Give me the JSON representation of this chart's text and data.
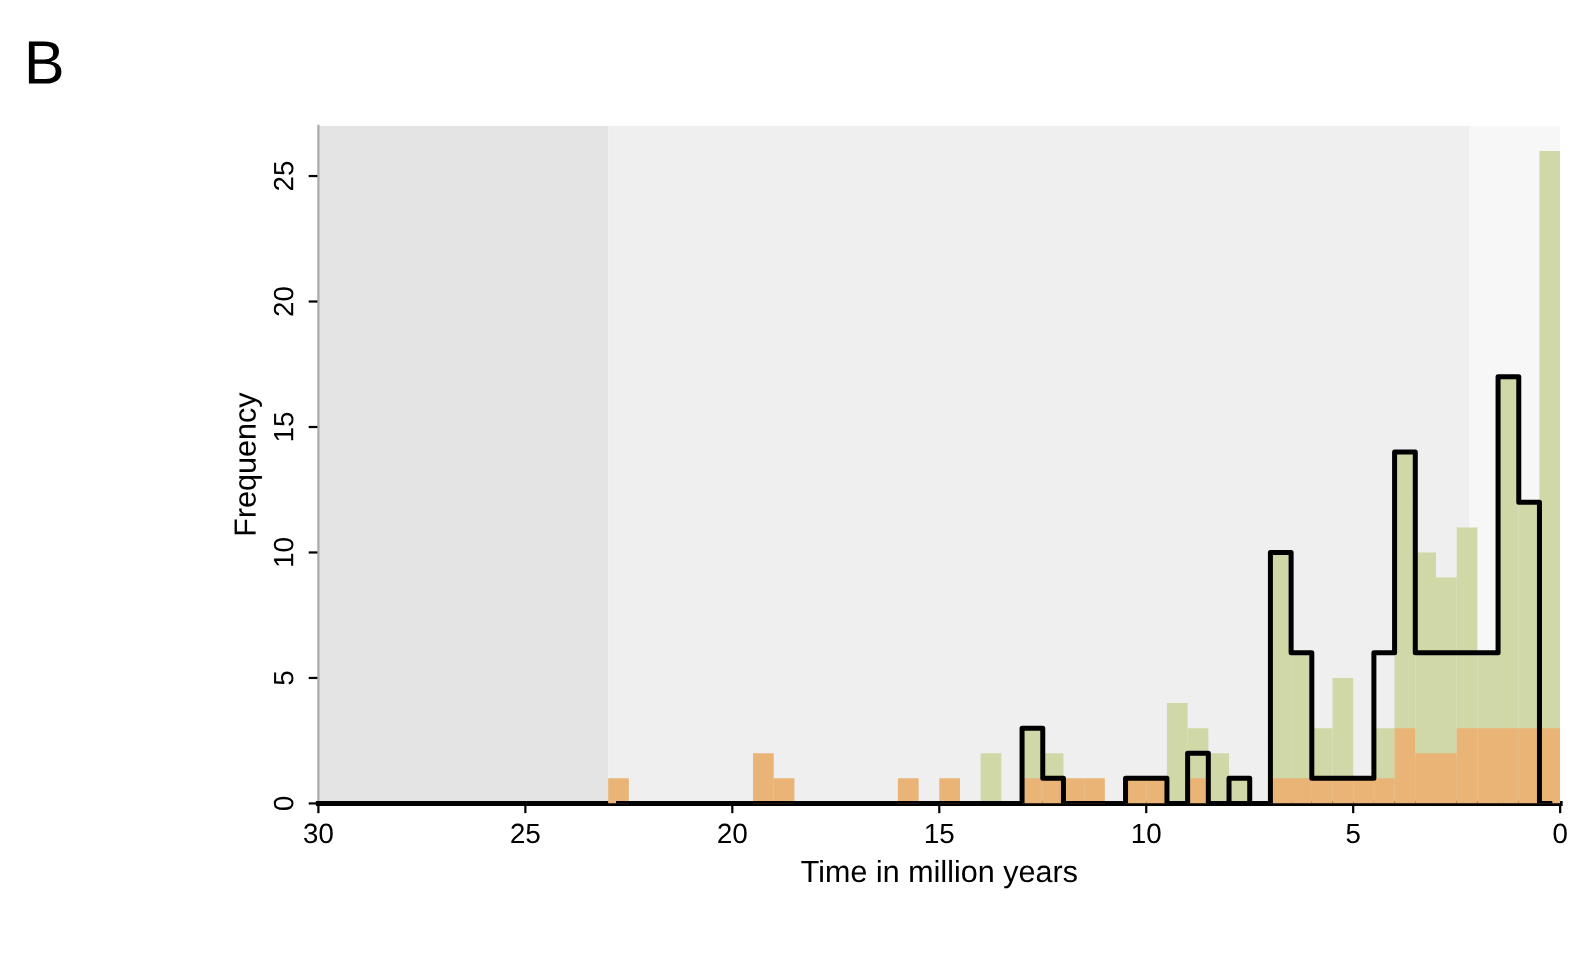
{
  "chart_data": {
    "type": "histogram",
    "title": "B",
    "xlabel": "Time in million years",
    "ylabel": "Frequency",
    "bins": [
      0,
      0.5,
      1,
      1.5,
      2,
      2.5,
      3,
      3.5,
      4,
      4.5,
      5,
      5.5,
      6,
      6.5,
      7,
      7.5,
      8,
      8.5,
      9,
      9.5,
      10,
      10.5,
      11,
      11.5,
      12,
      12.5,
      13,
      13.5,
      14,
      14.5,
      15,
      15.5,
      16,
      16.5,
      17,
      17.5,
      18,
      18.5,
      19,
      19.5,
      20,
      20.5,
      21,
      21.5,
      22,
      22.5,
      23
    ],
    "series": [
      {
        "color": "#cfd8a6",
        "values": [
          26,
          12,
          17,
          6,
          11,
          9,
          10,
          14,
          3,
          0,
          5,
          3,
          6,
          10,
          0,
          1,
          2,
          3,
          4,
          0,
          0,
          0,
          0,
          0,
          2,
          3,
          0,
          2,
          0,
          0,
          0,
          0,
          0,
          0,
          0,
          0,
          0,
          0,
          0,
          0,
          0,
          0,
          0,
          0,
          0,
          0
        ]
      },
      {
        "color": "#e9b476",
        "values": [
          3,
          3,
          3,
          3,
          3,
          2,
          2,
          3,
          1,
          1,
          1,
          1,
          1,
          1,
          0,
          0,
          0,
          1,
          0,
          1,
          1,
          0,
          1,
          1,
          1,
          1,
          0,
          0,
          0,
          1,
          0,
          1,
          0,
          0,
          0,
          0,
          0,
          1,
          2,
          0,
          0,
          0,
          0,
          0,
          0,
          1
        ]
      },
      {
        "type": "step",
        "color": "#000000",
        "x": [
          0.25,
          0.75,
          1.25,
          1.75,
          2.25,
          2.75,
          3.25,
          3.75,
          4.25,
          4.75,
          5.25,
          5.75,
          6.25,
          6.75,
          7.25,
          7.75,
          8.25,
          8.75,
          9.25,
          9.75,
          10.25,
          10.75,
          11.25,
          11.75,
          12.25,
          12.75,
          13.25,
          13.75,
          14.25,
          14.75,
          15.25,
          15.75,
          16.25,
          16.75,
          17.25,
          17.75,
          18.25,
          18.75,
          19.25,
          19.75,
          20.25,
          20.75,
          21.25,
          21.75,
          22.25,
          22.75
        ],
        "values": [
          0,
          12,
          17,
          6,
          6,
          6,
          6,
          14,
          6,
          1,
          1,
          1,
          6,
          10,
          0,
          1,
          0,
          2,
          0,
          1,
          1,
          0,
          0,
          0,
          1,
          3,
          0,
          0,
          0,
          0,
          0,
          0,
          0,
          0,
          0,
          0,
          0,
          0,
          0,
          0,
          0,
          0,
          0,
          0,
          0,
          0
        ]
      }
    ],
    "xlim": [
      30,
      0
    ],
    "xticks": [
      30,
      25,
      20,
      15,
      10,
      5,
      0
    ],
    "ylim": [
      0,
      27
    ],
    "yticks": [
      0,
      5,
      10,
      15,
      20,
      25
    ],
    "bands": [
      {
        "axis": "x",
        "from": 30,
        "to": 23,
        "color": "#e4e4e4"
      },
      {
        "axis": "x",
        "from": 23,
        "to": 2.2,
        "color": "#efefef"
      },
      {
        "axis": "x",
        "from": 2.2,
        "to": 0,
        "color": "#f7f7f7"
      }
    ],
    "grid": false
  }
}
